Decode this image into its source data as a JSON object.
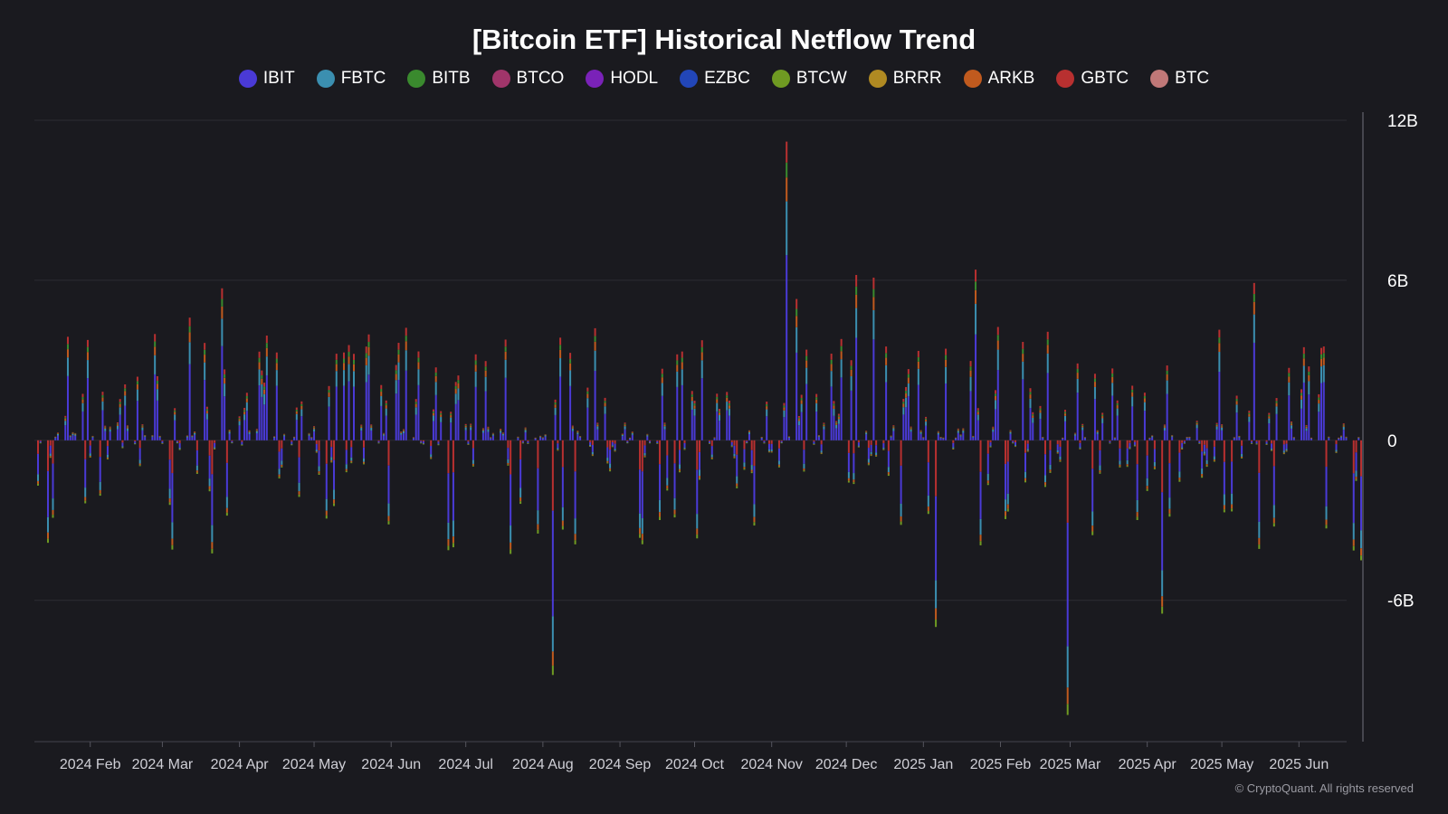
{
  "chart_data": {
    "type": "bar",
    "stacked": true,
    "title": "[Bitcoin ETF] Historical Netflow Trend",
    "legend_position": "top-center",
    "series": [
      {
        "name": "IBIT",
        "color": "#4a3ad6"
      },
      {
        "name": "FBTC",
        "color": "#3b8fb0"
      },
      {
        "name": "BITB",
        "color": "#3a8a2e"
      },
      {
        "name": "BTCO",
        "color": "#a0356a"
      },
      {
        "name": "HODL",
        "color": "#7a22b8"
      },
      {
        "name": "EZBC",
        "color": "#2246b8"
      },
      {
        "name": "BTCW",
        "color": "#6f9a22"
      },
      {
        "name": "BRRR",
        "color": "#b08a22"
      },
      {
        "name": "ARKB",
        "color": "#c05a1e"
      },
      {
        "name": "GBTC",
        "color": "#b83030"
      },
      {
        "name": "BTC",
        "color": "#c07878"
      }
    ],
    "y_axis": {
      "position": "right",
      "ylim": [
        -11300000000,
        12000000000
      ],
      "ticks": [
        {
          "value": 12000000000,
          "label": "12B"
        },
        {
          "value": 6000000000,
          "label": "6B"
        },
        {
          "value": 0,
          "label": "0"
        },
        {
          "value": -6000000000,
          "label": "-6B"
        }
      ]
    },
    "x_axis": {
      "type": "date",
      "range": [
        "2024-01-11",
        "2025-06-26"
      ],
      "ticks": [
        {
          "date": "2024-02-01",
          "label": "2024 Feb"
        },
        {
          "date": "2024-03-01",
          "label": "2024 Mar"
        },
        {
          "date": "2024-04-01",
          "label": "2024 Apr"
        },
        {
          "date": "2024-05-01",
          "label": "2024 May"
        },
        {
          "date": "2024-06-01",
          "label": "2024 Jun"
        },
        {
          "date": "2024-07-01",
          "label": "2024 Jul"
        },
        {
          "date": "2024-08-01",
          "label": "2024 Aug"
        },
        {
          "date": "2024-09-01",
          "label": "2024 Sep"
        },
        {
          "date": "2024-10-01",
          "label": "2024 Oct"
        },
        {
          "date": "2024-11-01",
          "label": "2024 Nov"
        },
        {
          "date": "2024-12-01",
          "label": "2024 Dec"
        },
        {
          "date": "2025-01-01",
          "label": "2025 Jan"
        },
        {
          "date": "2025-02-01",
          "label": "2025 Feb"
        },
        {
          "date": "2025-03-01",
          "label": "2025 Mar"
        },
        {
          "date": "2025-04-01",
          "label": "2025 Apr"
        },
        {
          "date": "2025-05-01",
          "label": "2025 May"
        },
        {
          "date": "2025-06-01",
          "label": "2025 Jun"
        }
      ]
    },
    "grid": true,
    "notable_points": [
      {
        "date": "2024-01-11",
        "net": -1700000000
      },
      {
        "date": "2024-03-12",
        "net": 4600000000
      },
      {
        "date": "2024-03-25",
        "net": 5700000000
      },
      {
        "date": "2024-08-05",
        "net": -8800000000
      },
      {
        "date": "2024-11-07",
        "net": 11200000000
      },
      {
        "date": "2024-11-11",
        "net": 5300000000
      },
      {
        "date": "2024-12-05",
        "net": 6200000000
      },
      {
        "date": "2024-12-12",
        "net": 6100000000
      },
      {
        "date": "2025-01-06",
        "net": -7000000000
      },
      {
        "date": "2025-01-22",
        "net": 6400000000
      },
      {
        "date": "2025-02-28",
        "net": -10300000000
      },
      {
        "date": "2025-04-07",
        "net": -6500000000
      },
      {
        "date": "2025-05-14",
        "net": 5900000000
      },
      {
        "date": "2025-06-26",
        "net": -4500000000
      }
    ]
  },
  "footer": {
    "copyright": "© CryptoQuant. All rights reserved"
  }
}
